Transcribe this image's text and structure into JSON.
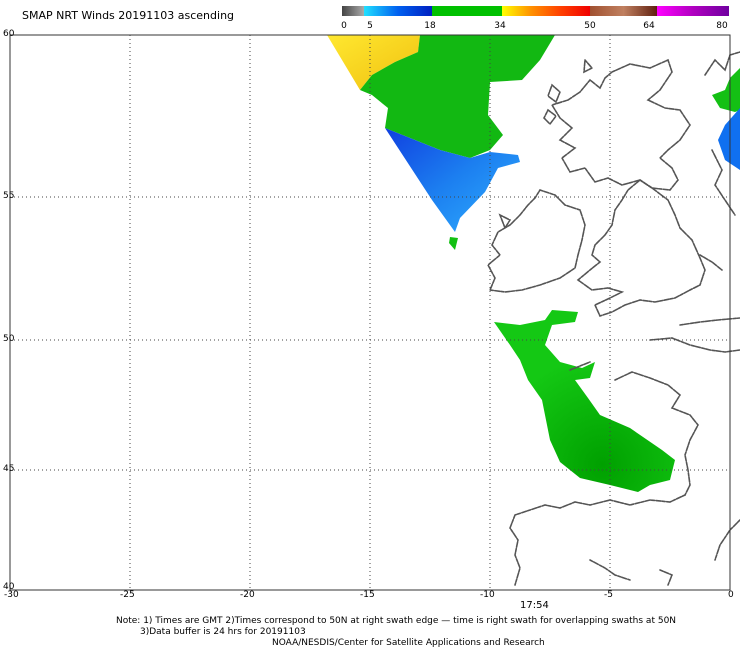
{
  "title": "SMAP NRT Winds 20191103 ascending",
  "legend": {
    "labels": [
      "0",
      "5",
      "18",
      "34",
      "50",
      "64",
      "80"
    ],
    "colors": {
      "0-5": "#555555",
      "5-18": "#0a7fe8",
      "18-34": "#00c000",
      "34-50": "#f08020",
      "50-64": "#e01818",
      "64-80": "#b000c0"
    }
  },
  "axes": {
    "lon_labels": [
      "-30",
      "-25",
      "-20",
      "-15",
      "-10",
      "-5",
      "0"
    ],
    "lat_labels": [
      "60",
      "55",
      "50",
      "45",
      "40"
    ]
  },
  "time_label": "17:54",
  "notes": {
    "line1": "Note: 1) Times are GMT 2)Times correspond to 50N at right swath edge — time is right swath for overlapping swaths at 50N",
    "line2": "3)Data buffer is 24 hrs for 20191103",
    "line3": "NOAA/NESDIS/Center for Satellite Applications and Research"
  },
  "colors": {
    "swath_green": "#0fbf10",
    "swath_blue": "#1058e8",
    "swath_yellow": "#f8d820",
    "coast": "#555555",
    "grid": "#555555"
  }
}
